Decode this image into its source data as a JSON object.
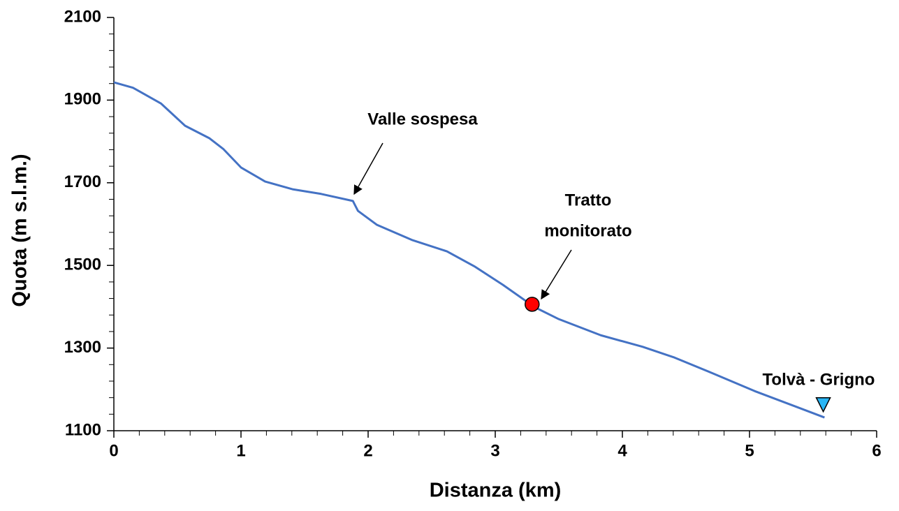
{
  "chart_data": {
    "type": "line",
    "xlabel": "Distanza (km)",
    "ylabel": "Quota (m s.l.m.)",
    "x": [
      0,
      0.15,
      0.37,
      0.56,
      0.75,
      0.86,
      1.0,
      1.19,
      1.41,
      1.63,
      1.88,
      1.92,
      2.07,
      2.35,
      2.62,
      2.84,
      3.06,
      3.31,
      3.5,
      3.83,
      4.16,
      4.41,
      4.71,
      5.04,
      5.59
    ],
    "values": [
      1943,
      1930,
      1892,
      1838,
      1808,
      1782,
      1737,
      1703,
      1684,
      1673,
      1656,
      1632,
      1598,
      1561,
      1534,
      1497,
      1453,
      1399,
      1370,
      1331,
      1303,
      1277,
      1239,
      1196,
      1132
    ],
    "color": "#4472c4",
    "xlim": [
      0,
      6
    ],
    "xticks": [
      0,
      1,
      2,
      3,
      4,
      5,
      6
    ],
    "xminor": 0.2,
    "ylim": [
      1100,
      2100
    ],
    "yticks": [
      1100,
      1300,
      1500,
      1700,
      1900,
      2100
    ],
    "yminor": 40,
    "points": [
      {
        "x": 3.29,
        "y": 1406,
        "shape": "circle",
        "color": "#ff0000"
      },
      {
        "x": 5.58,
        "y": 1163,
        "shape": "triangle",
        "color": "#29b6f6"
      }
    ],
    "annotations": [
      {
        "lines": [
          "Valle sospesa"
        ]
      },
      {
        "lines": [
          "Tratto",
          "monitorato"
        ]
      },
      {
        "lines": [
          "Tolvà - Grigno"
        ]
      }
    ]
  }
}
